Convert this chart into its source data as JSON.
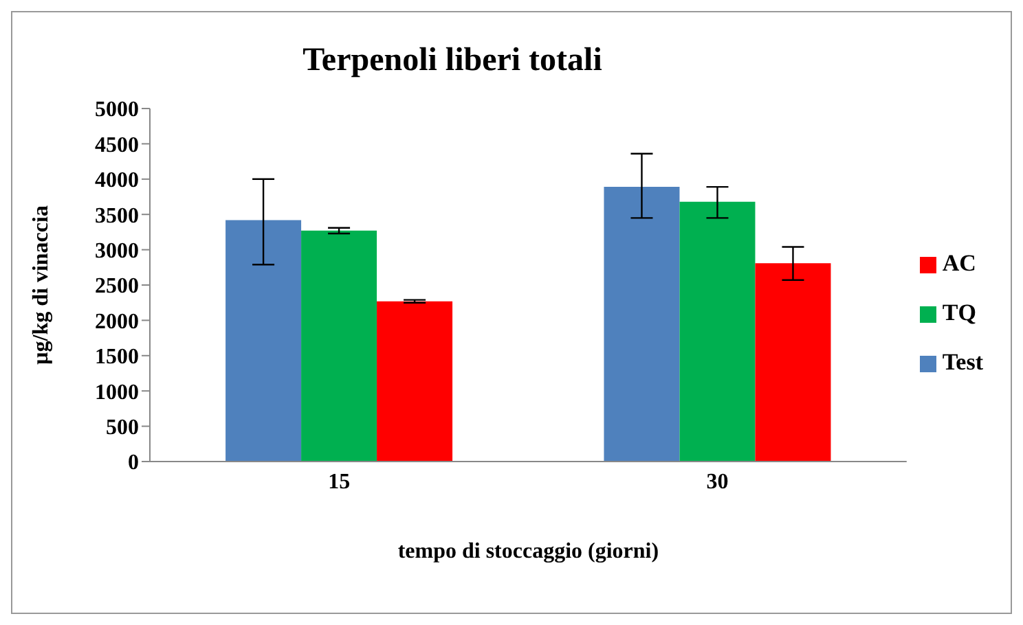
{
  "chart_data": {
    "type": "bar",
    "title": "Terpenoli liberi totali",
    "xlabel": "tempo di stoccaggio (giorni)",
    "ylabel": "µg/kg di vinaccia",
    "categories": [
      "15",
      "30"
    ],
    "series": [
      {
        "name": "Test",
        "color": "#4f81bd",
        "values": [
          3420,
          3890
        ],
        "errors": [
          [
            2790,
            4000
          ],
          [
            3450,
            4360
          ]
        ]
      },
      {
        "name": "TQ",
        "color": "#00b050",
        "values": [
          3270,
          3680
        ],
        "errors": [
          [
            3230,
            3310
          ],
          [
            3450,
            3890
          ]
        ]
      },
      {
        "name": "AC",
        "color": "#ff0000",
        "values": [
          2270,
          2810
        ],
        "errors": [
          [
            2250,
            2290
          ],
          [
            2570,
            3040
          ]
        ]
      }
    ],
    "ylim": [
      0,
      5000
    ],
    "yticks": [
      0,
      500,
      1000,
      1500,
      2000,
      2500,
      3000,
      3500,
      4000,
      4500,
      5000
    ],
    "grid": false,
    "legend": "right"
  }
}
